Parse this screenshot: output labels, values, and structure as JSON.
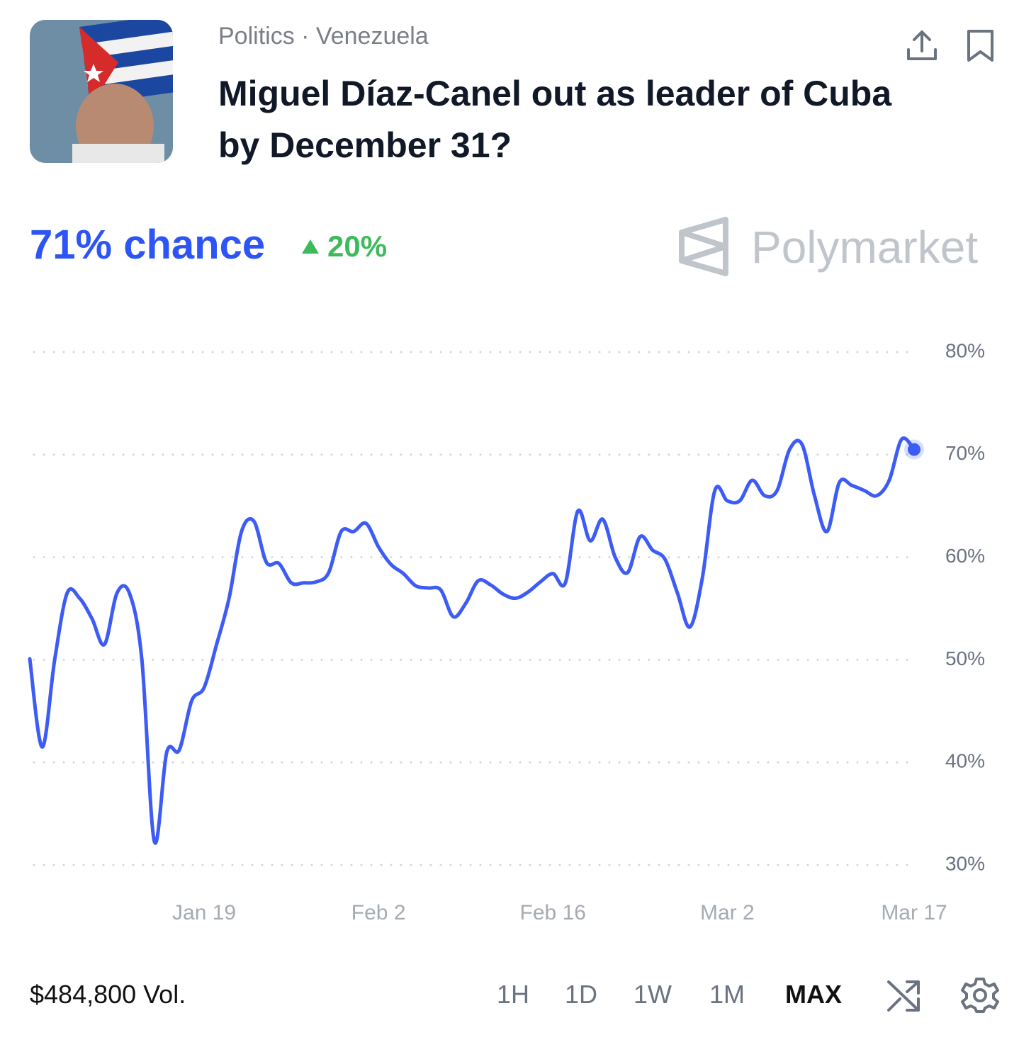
{
  "header": {
    "category": "Politics · Venezuela",
    "title": "Miguel Díaz-Canel out as leader of Cuba by December 31?"
  },
  "summary": {
    "chance": "71% chance",
    "change": "20%",
    "brand": "Polymarket"
  },
  "chart_data": {
    "type": "line",
    "color": "#3d5cf5",
    "grid": true,
    "x": [
      "Jan 5",
      "Jan 6",
      "Jan 7",
      "Jan 8",
      "Jan 9",
      "Jan 10",
      "Jan 11",
      "Jan 12",
      "Jan 13",
      "Jan 14",
      "Jan 15",
      "Jan 16",
      "Jan 17",
      "Jan 18",
      "Jan 19",
      "Jan 20",
      "Jan 21",
      "Jan 22",
      "Jan 23",
      "Jan 24",
      "Jan 25",
      "Jan 26",
      "Jan 27",
      "Jan 28",
      "Jan 29",
      "Jan 30",
      "Jan 31",
      "Feb 1",
      "Feb 2",
      "Feb 3",
      "Feb 4",
      "Feb 5",
      "Feb 6",
      "Feb 7",
      "Feb 8",
      "Feb 9",
      "Feb 10",
      "Feb 11",
      "Feb 12",
      "Feb 13",
      "Feb 14",
      "Feb 15",
      "Feb 16",
      "Feb 17",
      "Feb 18",
      "Feb 19",
      "Feb 20",
      "Feb 21",
      "Feb 22",
      "Feb 23",
      "Feb 24",
      "Feb 25",
      "Feb 26",
      "Feb 27",
      "Feb 28",
      "Mar 1",
      "Mar 2",
      "Mar 3",
      "Mar 4",
      "Mar 5",
      "Mar 6",
      "Mar 7",
      "Mar 8",
      "Mar 9",
      "Mar 10",
      "Mar 11",
      "Mar 12",
      "Mar 13",
      "Mar 14",
      "Mar 15",
      "Mar 16",
      "Mar 17"
    ],
    "values": [
      50.1,
      41.5,
      50,
      56.5,
      56,
      54,
      51.5,
      56.5,
      56.5,
      50,
      32.3,
      41,
      41.2,
      46,
      47.3,
      51.5,
      56,
      62.5,
      63.5,
      59.5,
      59.4,
      57.5,
      57.5,
      57.6,
      58.5,
      62.5,
      62.5,
      63.3,
      61,
      59.3,
      58.4,
      57.2,
      57,
      56.8,
      54.2,
      55.5,
      57.7,
      57.3,
      56.4,
      56,
      56.6,
      57.6,
      58.4,
      57.5,
      64.5,
      61.6,
      63.7,
      60,
      58.5,
      62,
      60.7,
      59.8,
      56.5,
      53.2,
      58,
      66.5,
      65.5,
      65.5,
      67.5,
      66,
      66.5,
      70.5,
      71,
      66,
      62.5,
      67.3,
      67,
      66.5,
      66,
      67.5,
      71.5,
      70.5
    ],
    "xlim": [
      "Jan 5",
      "Mar 17"
    ],
    "xticks": [
      "Jan 19",
      "Feb 2",
      "Feb 16",
      "Mar 2",
      "Mar 17"
    ],
    "ylim": [
      30,
      80
    ],
    "yticks": [
      {
        "value": 30,
        "label": "30%"
      },
      {
        "value": 40,
        "label": "40%"
      },
      {
        "value": 50,
        "label": "50%"
      },
      {
        "value": 60,
        "label": "60%"
      },
      {
        "value": 70,
        "label": "70%"
      },
      {
        "value": 80,
        "label": "80%"
      }
    ]
  },
  "footer": {
    "volume": "$484,800 Vol.",
    "ranges": [
      "1H",
      "1D",
      "1W",
      "1M",
      "MAX"
    ],
    "selected": "MAX"
  }
}
